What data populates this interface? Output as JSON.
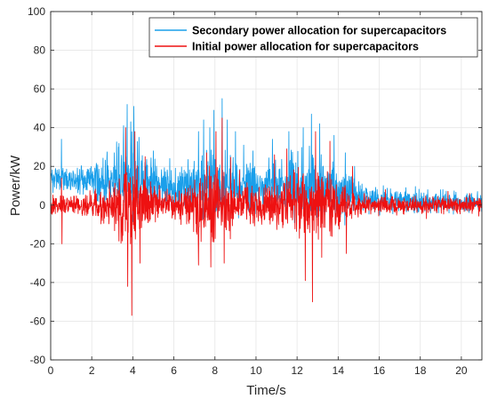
{
  "chart_data": {
    "type": "line",
    "title": "",
    "xlabel": "Time/s",
    "ylabel": "Power/kW",
    "xlim": [
      0,
      21
    ],
    "ylim": [
      -80,
      100
    ],
    "xticks": [
      "0",
      "2",
      "4",
      "6",
      "8",
      "10",
      "12",
      "14",
      "16",
      "18",
      "20"
    ],
    "yticks": [
      "-80",
      "-60",
      "-40",
      "-20",
      "0",
      "20",
      "40",
      "60",
      "80",
      "100"
    ],
    "grid": true,
    "legend_position": "top-right",
    "sample_interval_s": 0.0125,
    "series": [
      {
        "name": "Secondary power allocation for supercapacitors",
        "color": "#1a9fea",
        "trend": {
          "t": [
            0,
            0.5,
            1.0,
            2.0,
            3.0,
            3.5,
            4.0,
            4.5,
            5.0,
            6.0,
            7.0,
            7.5,
            8.0,
            8.5,
            9.0,
            10.0,
            11.0,
            11.5,
            12.0,
            13.0,
            14.0,
            14.5,
            15.0,
            16.0,
            17.0,
            18.0,
            19.0,
            20.0,
            21.0
          ],
          "mean": [
            14,
            14,
            13,
            12,
            12,
            12.5,
            13,
            12,
            11,
            10,
            10,
            10.5,
            11,
            10.5,
            10,
            10,
            10,
            10,
            10,
            9,
            8,
            7,
            5,
            2.5,
            2.5,
            2,
            2,
            1.5,
            1.5
          ],
          "amplitude": [
            4,
            4,
            4,
            6,
            9,
            13,
            15,
            11,
            8,
            7,
            9,
            12,
            13,
            11,
            8,
            8,
            8,
            10,
            12,
            11,
            8,
            7,
            5,
            4,
            4,
            4,
            3.5,
            3.5,
            3
          ]
        },
        "peaks": [
          {
            "t": 0.52,
            "v": 34
          },
          {
            "t": 0.6,
            "v": 19
          },
          {
            "t": 3.1,
            "v": 27
          },
          {
            "t": 3.55,
            "v": 41
          },
          {
            "t": 3.72,
            "v": 52
          },
          {
            "t": 3.9,
            "v": 43
          },
          {
            "t": 4.05,
            "v": 51
          },
          {
            "t": 4.3,
            "v": 35
          },
          {
            "t": 5.0,
            "v": 28
          },
          {
            "t": 5.8,
            "v": 24
          },
          {
            "t": 7.2,
            "v": 38
          },
          {
            "t": 7.45,
            "v": 44
          },
          {
            "t": 7.75,
            "v": 40
          },
          {
            "t": 7.95,
            "v": 49
          },
          {
            "t": 8.35,
            "v": 55
          },
          {
            "t": 8.6,
            "v": 44
          },
          {
            "t": 9.0,
            "v": 38
          },
          {
            "t": 9.4,
            "v": 31
          },
          {
            "t": 9.85,
            "v": 28
          },
          {
            "t": 10.8,
            "v": 34
          },
          {
            "t": 11.6,
            "v": 38
          },
          {
            "t": 12.3,
            "v": 40
          },
          {
            "t": 12.7,
            "v": 47
          },
          {
            "t": 13.1,
            "v": 42
          },
          {
            "t": 13.8,
            "v": 36
          },
          {
            "t": 14.35,
            "v": 27
          },
          {
            "t": 14.8,
            "v": 20
          },
          {
            "t": 16.2,
            "v": 10
          },
          {
            "t": 17.3,
            "v": 9
          },
          {
            "t": 19.1,
            "v": 8
          },
          {
            "t": 20.5,
            "v": 6
          }
        ],
        "seed": 1703
      },
      {
        "name": "Initial power allocation for supercapacitors",
        "color": "#ee1111",
        "trend": {
          "t": [
            0,
            0.5,
            1.0,
            2.0,
            3.0,
            3.5,
            4.0,
            4.5,
            5.0,
            6.0,
            7.0,
            7.5,
            8.0,
            8.5,
            9.0,
            10.0,
            11.0,
            11.5,
            12.0,
            13.0,
            14.0,
            14.5,
            15.0,
            16.0,
            17.0,
            18.0,
            19.0,
            20.0,
            21.0
          ],
          "mean": [
            0,
            0,
            0,
            0,
            0,
            0,
            0,
            0,
            0,
            0,
            0,
            0,
            0,
            0,
            0,
            0,
            0,
            0,
            0,
            0,
            0,
            0,
            0,
            0,
            0,
            0,
            0,
            0,
            0
          ],
          "amplitude": [
            3,
            4,
            3,
            5,
            8,
            14,
            17,
            11,
            6,
            5,
            9,
            14,
            15,
            11,
            7,
            7,
            7,
            10,
            13,
            12,
            8,
            6,
            4,
            3,
            3,
            3,
            3,
            3,
            3
          ]
        },
        "peaks": [
          {
            "t": 0.55,
            "v": -20
          },
          {
            "t": 0.52,
            "v": 14
          },
          {
            "t": 3.65,
            "v": 40
          },
          {
            "t": 3.75,
            "v": -42
          },
          {
            "t": 3.95,
            "v": -57
          },
          {
            "t": 4.1,
            "v": 38
          },
          {
            "t": 4.35,
            "v": -30
          },
          {
            "t": 4.6,
            "v": 25
          },
          {
            "t": 7.2,
            "v": -31
          },
          {
            "t": 7.6,
            "v": 27
          },
          {
            "t": 7.8,
            "v": -32
          },
          {
            "t": 8.05,
            "v": 38
          },
          {
            "t": 8.35,
            "v": 45
          },
          {
            "t": 8.45,
            "v": -30
          },
          {
            "t": 9.2,
            "v": 18
          },
          {
            "t": 10.9,
            "v": 26
          },
          {
            "t": 11.5,
            "v": 29
          },
          {
            "t": 12.4,
            "v": -39
          },
          {
            "t": 12.75,
            "v": -50
          },
          {
            "t": 12.9,
            "v": 38
          },
          {
            "t": 13.2,
            "v": -27
          },
          {
            "t": 13.6,
            "v": 33
          },
          {
            "t": 14.4,
            "v": -25
          },
          {
            "t": 14.7,
            "v": 20
          },
          {
            "t": 16.3,
            "v": 8
          },
          {
            "t": 18.3,
            "v": -7
          },
          {
            "t": 20.4,
            "v": 6
          }
        ],
        "seed": 2917
      }
    ]
  }
}
